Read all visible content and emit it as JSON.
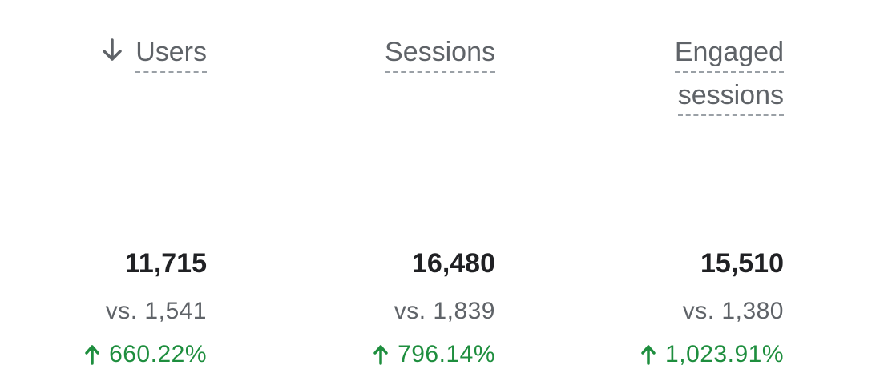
{
  "metrics": [
    {
      "header_lines": [
        "Users"
      ],
      "value": "11,715",
      "compare": "vs. 1,541",
      "change": "660.22%",
      "sorted": true
    },
    {
      "header_lines": [
        "Sessions"
      ],
      "value": "16,480",
      "compare": "vs. 1,839",
      "change": "796.14%",
      "sorted": false
    },
    {
      "header_lines": [
        "Engaged",
        "sessions"
      ],
      "value": "15,510",
      "compare": "vs. 1,380",
      "change": "1,023.91%",
      "sorted": false
    }
  ],
  "colors": {
    "header": "#5f6368",
    "value": "#202124",
    "compare": "#5f6368",
    "positive_change": "#1e8e3e"
  },
  "icons": {
    "sort": "arrow-down-icon",
    "change": "arrow-up-icon"
  }
}
